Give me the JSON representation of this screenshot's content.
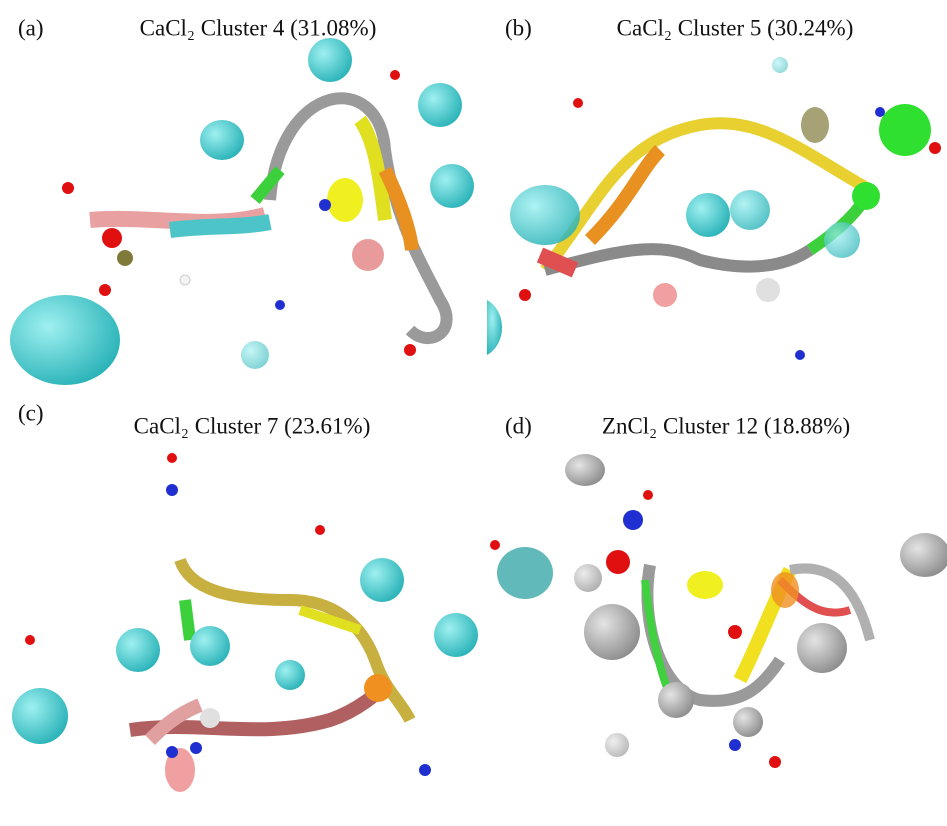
{
  "panels": [
    {
      "label": "(a)",
      "title": "CaCl₂ Cluster 4 (31.08%)"
    },
    {
      "label": "(b)",
      "title": "CaCl₂ Cluster 5 (30.24%)"
    },
    {
      "label": "(c)",
      "title": "CaCl₂ Cluster 7 (23.61%)"
    },
    {
      "label": "(d)",
      "title": "ZnCl₂ Cluster 12 (18.88%)"
    }
  ]
}
